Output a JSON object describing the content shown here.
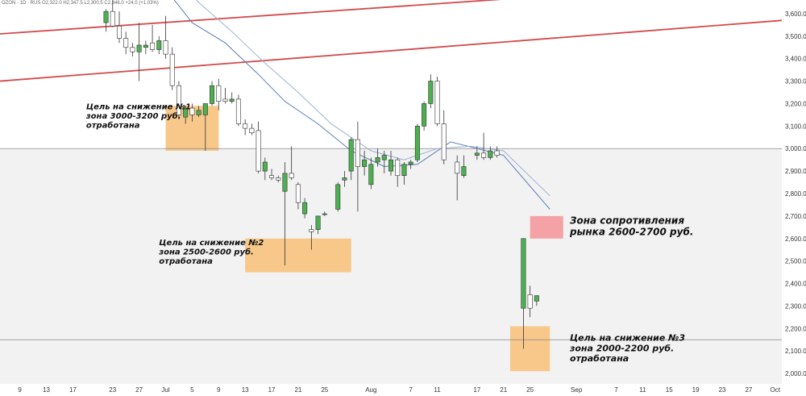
{
  "header": {
    "symbol_line": "OZON · 1D · RUS O2,322.0 H2,347.5 L2,300.5 C2,346.0 +24.0 (+1.03%)"
  },
  "chart_data": {
    "type": "candlestick",
    "y_scale": "linear",
    "y_range": [
      1950,
      3650
    ],
    "x_range": [
      "2023-06-06",
      "2023-10-02"
    ],
    "grid": false,
    "y_ticks": [
      "3,600.0",
      "3,500.0",
      "3,400.0",
      "3,300.0",
      "3,200.0",
      "3,100.0",
      "3,000.0",
      "2,900.0",
      "2,800.0",
      "2,700.0",
      "2,600.0",
      "2,500.0",
      "2,400.0",
      "2,300.0",
      "2,200.0",
      "2,100.0",
      "2,000.0"
    ],
    "y_tick_values": [
      3600,
      3500,
      3400,
      3300,
      3200,
      3100,
      3000,
      2900,
      2800,
      2700,
      2600,
      2500,
      2400,
      2300,
      2200,
      2100,
      2000
    ],
    "x_ticks": [
      {
        "label": "9",
        "date": "2023-06-09"
      },
      {
        "label": "13",
        "date": "2023-06-13"
      },
      {
        "label": "17",
        "date": "2023-06-17"
      },
      {
        "label": "23",
        "date": "2023-06-23"
      },
      {
        "label": "27",
        "date": "2023-06-27"
      },
      {
        "label": "Jul",
        "date": "2023-07-01"
      },
      {
        "label": "5",
        "date": "2023-07-05"
      },
      {
        "label": "9",
        "date": "2023-07-09"
      },
      {
        "label": "13",
        "date": "2023-07-13"
      },
      {
        "label": "17",
        "date": "2023-07-17"
      },
      {
        "label": "21",
        "date": "2023-07-21"
      },
      {
        "label": "25",
        "date": "2023-07-25"
      },
      {
        "label": "Aug",
        "date": "2023-08-01"
      },
      {
        "label": "7",
        "date": "2023-08-07"
      },
      {
        "label": "11",
        "date": "2023-08-11"
      },
      {
        "label": "17",
        "date": "2023-08-17"
      },
      {
        "label": "21",
        "date": "2023-08-21"
      },
      {
        "label": "25",
        "date": "2023-08-25"
      },
      {
        "label": "Sep",
        "date": "2023-09-01"
      },
      {
        "label": "7",
        "date": "2023-09-07"
      },
      {
        "label": "11",
        "date": "2023-09-11"
      },
      {
        "label": "15",
        "date": "2023-09-15"
      },
      {
        "label": "19",
        "date": "2023-09-19"
      },
      {
        "label": "23",
        "date": "2023-09-23"
      },
      {
        "label": "27",
        "date": "2023-09-27"
      },
      {
        "label": "Oct",
        "date": "2023-10-01"
      }
    ],
    "candles": [
      {
        "date": "2023-06-22",
        "open": 3560,
        "high": 3620,
        "low": 3520,
        "close": 3610
      },
      {
        "date": "2023-06-23",
        "open": 3610,
        "high": 3660,
        "low": 3540,
        "close": 3545
      },
      {
        "date": "2023-06-24",
        "open": 3545,
        "high": 3610,
        "low": 3470,
        "close": 3490
      },
      {
        "date": "2023-06-25",
        "open": 3490,
        "high": 3520,
        "low": 3420,
        "close": 3450
      },
      {
        "date": "2023-06-26",
        "open": 3450,
        "high": 3470,
        "low": 3410,
        "close": 3430
      },
      {
        "date": "2023-06-27",
        "open": 3430,
        "high": 3560,
        "low": 3300,
        "close": 3460
      },
      {
        "date": "2023-06-28",
        "open": 3450,
        "high": 3480,
        "low": 3420,
        "close": 3460
      },
      {
        "date": "2023-06-29",
        "open": 3470,
        "high": 3550,
        "low": 3430,
        "close": 3440
      },
      {
        "date": "2023-06-30",
        "open": 3440,
        "high": 3500,
        "low": 3420,
        "close": 3480
      },
      {
        "date": "2023-07-01",
        "open": 3480,
        "high": 3590,
        "low": 3400,
        "close": 3420
      },
      {
        "date": "2023-07-02",
        "open": 3420,
        "high": 3450,
        "low": 3260,
        "close": 3280
      },
      {
        "date": "2023-07-03",
        "open": 3280,
        "high": 3300,
        "low": 3130,
        "close": 3150
      },
      {
        "date": "2023-07-04",
        "open": 3140,
        "high": 3190,
        "low": 3110,
        "close": 3180
      },
      {
        "date": "2023-07-05",
        "open": 3180,
        "high": 3200,
        "low": 3120,
        "close": 3150
      },
      {
        "date": "2023-07-06",
        "open": 3150,
        "high": 3190,
        "low": 3140,
        "close": 3170
      },
      {
        "date": "2023-07-07",
        "open": 3150,
        "high": 3200,
        "low": 2990,
        "close": 3200
      },
      {
        "date": "2023-07-08",
        "open": 3200,
        "high": 3300,
        "low": 3190,
        "close": 3280
      },
      {
        "date": "2023-07-09",
        "open": 3280,
        "high": 3310,
        "low": 3170,
        "close": 3210
      },
      {
        "date": "2023-07-10",
        "open": 3220,
        "high": 3270,
        "low": 3200,
        "close": 3210
      },
      {
        "date": "2023-07-11",
        "open": 3210,
        "high": 3250,
        "low": 3200,
        "close": 3220
      },
      {
        "date": "2023-07-12",
        "open": 3220,
        "high": 3240,
        "low": 3100,
        "close": 3110
      },
      {
        "date": "2023-07-13",
        "open": 3110,
        "high": 3130,
        "low": 3060,
        "close": 3090
      },
      {
        "date": "2023-07-14",
        "open": 3090,
        "high": 3110,
        "low": 3060,
        "close": 3070
      },
      {
        "date": "2023-07-15",
        "open": 3080,
        "high": 3120,
        "low": 2890,
        "close": 2900
      },
      {
        "date": "2023-07-16",
        "open": 2900,
        "high": 2960,
        "low": 2860,
        "close": 2940
      },
      {
        "date": "2023-07-17",
        "open": 2880,
        "high": 2910,
        "low": 2860,
        "close": 2870
      },
      {
        "date": "2023-07-18",
        "open": 2870,
        "high": 2880,
        "low": 2850,
        "close": 2860
      },
      {
        "date": "2023-07-19",
        "open": 2810,
        "high": 2940,
        "low": 2480,
        "close": 2890
      },
      {
        "date": "2023-07-20",
        "open": 2890,
        "high": 3010,
        "low": 2860,
        "close": 2870
      },
      {
        "date": "2023-07-21",
        "open": 2840,
        "high": 2850,
        "low": 2730,
        "close": 2760
      },
      {
        "date": "2023-07-22",
        "open": 2710,
        "high": 2780,
        "low": 2690,
        "close": 2760
      },
      {
        "date": "2023-07-23",
        "open": 2640,
        "high": 2660,
        "low": 2550,
        "close": 2630
      },
      {
        "date": "2023-07-24",
        "open": 2640,
        "high": 2700,
        "low": 2620,
        "close": 2700
      },
      {
        "date": "2023-07-25",
        "open": 2710,
        "high": 2720,
        "low": 2700,
        "close": 2710
      },
      {
        "date": "2023-07-27",
        "open": 2730,
        "high": 2850,
        "low": 2720,
        "close": 2840
      },
      {
        "date": "2023-07-28",
        "open": 2860,
        "high": 2900,
        "low": 2830,
        "close": 2870
      },
      {
        "date": "2023-07-29",
        "open": 2900,
        "high": 3050,
        "low": 2860,
        "close": 3040
      },
      {
        "date": "2023-07-30",
        "open": 3040,
        "high": 3120,
        "low": 2720,
        "close": 2920
      },
      {
        "date": "2023-07-31",
        "open": 2920,
        "high": 2990,
        "low": 2880,
        "close": 2950
      },
      {
        "date": "2023-08-01",
        "open": 2840,
        "high": 2960,
        "low": 2820,
        "close": 2930
      },
      {
        "date": "2023-08-02",
        "open": 2940,
        "high": 3000,
        "low": 2920,
        "close": 2960
      },
      {
        "date": "2023-08-03",
        "open": 2950,
        "high": 2990,
        "low": 2890,
        "close": 2970
      },
      {
        "date": "2023-08-04",
        "open": 2900,
        "high": 2990,
        "low": 2880,
        "close": 2950
      },
      {
        "date": "2023-08-05",
        "open": 2950,
        "high": 2960,
        "low": 2830,
        "close": 2880
      },
      {
        "date": "2023-08-06",
        "open": 2880,
        "high": 2940,
        "low": 2840,
        "close": 2930
      },
      {
        "date": "2023-08-07",
        "open": 2930,
        "high": 2950,
        "low": 2910,
        "close": 2940
      },
      {
        "date": "2023-08-08",
        "open": 2950,
        "high": 3110,
        "low": 2940,
        "close": 3100
      },
      {
        "date": "2023-08-09",
        "open": 3100,
        "high": 3210,
        "low": 3080,
        "close": 3200
      },
      {
        "date": "2023-08-10",
        "open": 3200,
        "high": 3330,
        "low": 3180,
        "close": 3300
      },
      {
        "date": "2023-08-11",
        "open": 3300,
        "high": 3320,
        "low": 3100,
        "close": 3110
      },
      {
        "date": "2023-08-12",
        "open": 3110,
        "high": 3170,
        "low": 2930,
        "close": 2950
      },
      {
        "date": "2023-08-14",
        "open": 2940,
        "high": 2970,
        "low": 2770,
        "close": 2890
      },
      {
        "date": "2023-08-15",
        "open": 2880,
        "high": 2970,
        "low": 2870,
        "close": 2920
      },
      {
        "date": "2023-08-17",
        "open": 2970,
        "high": 3010,
        "low": 2950,
        "close": 2980
      },
      {
        "date": "2023-08-18",
        "open": 2980,
        "high": 3070,
        "low": 2950,
        "close": 2960
      },
      {
        "date": "2023-08-19",
        "open": 2960,
        "high": 3010,
        "low": 2950,
        "close": 2990
      },
      {
        "date": "2023-08-20",
        "open": 2990,
        "high": 3010,
        "low": 2960,
        "close": 2970
      },
      {
        "date": "2023-08-24",
        "open": 2290,
        "high": 2600,
        "low": 2110,
        "close": 2600
      },
      {
        "date": "2023-08-25",
        "open": 2350,
        "high": 2390,
        "low": 2250,
        "close": 2290
      },
      {
        "date": "2023-08-26",
        "open": 2322,
        "high": 2347.5,
        "low": 2300.5,
        "close": 2346
      }
    ],
    "moving_averages": [
      {
        "color": "#5b7fb8",
        "points": [
          [
            "2023-06-26",
            3800
          ],
          [
            "2023-07-01",
            3710
          ],
          [
            "2023-07-05",
            3560
          ],
          [
            "2023-07-10",
            3470
          ],
          [
            "2023-07-15",
            3330
          ],
          [
            "2023-07-19",
            3210
          ],
          [
            "2023-07-24",
            3110
          ],
          [
            "2023-07-29",
            2990
          ],
          [
            "2023-08-03",
            2920
          ],
          [
            "2023-08-08",
            2930
          ],
          [
            "2023-08-13",
            3030
          ],
          [
            "2023-08-17",
            3000
          ],
          [
            "2023-08-21",
            2970
          ],
          [
            "2023-08-28",
            2730
          ]
        ]
      },
      {
        "color": "#9ab0d6",
        "points": [
          [
            "2023-06-26",
            3880
          ],
          [
            "2023-07-01",
            3800
          ],
          [
            "2023-07-06",
            3650
          ],
          [
            "2023-07-11",
            3520
          ],
          [
            "2023-07-16",
            3380
          ],
          [
            "2023-07-21",
            3250
          ],
          [
            "2023-07-26",
            3110
          ],
          [
            "2023-08-01",
            2990
          ],
          [
            "2023-08-06",
            2950
          ],
          [
            "2023-08-11",
            3000
          ],
          [
            "2023-08-16",
            3010
          ],
          [
            "2023-08-21",
            2990
          ],
          [
            "2023-08-28",
            2790
          ]
        ]
      }
    ],
    "trend_lines": [
      {
        "color": "#d24a4a",
        "from": [
          "2023-06-06",
          3510
        ],
        "to": [
          "2023-10-02",
          3750
        ]
      },
      {
        "color": "#d24a4a",
        "from": [
          "2023-06-06",
          3300
        ],
        "to": [
          "2023-10-02",
          3570
        ]
      }
    ],
    "horizontal_lines": [
      {
        "value": 3000,
        "color": "#888888"
      },
      {
        "value": 2150,
        "color": "#888888"
      }
    ],
    "shaded_band": {
      "from": 3000,
      "to": 1950,
      "color": "#f2f2f2"
    },
    "zones": [
      {
        "from_date": "2023-07-01",
        "to_date": "2023-07-09",
        "low": 2990,
        "high": 3190,
        "color": "#f7c88a"
      },
      {
        "from_date": "2023-07-13",
        "to_date": "2023-07-29",
        "low": 2450,
        "high": 2600,
        "color": "#f7c88a"
      },
      {
        "from_date": "2023-08-22",
        "to_date": "2023-08-28",
        "low": 2010,
        "high": 2210,
        "color": "#f7c88a"
      },
      {
        "from_date": "2023-08-25",
        "to_date": "2023-08-30",
        "low": 2600,
        "high": 2700,
        "color": "#f4a2a6"
      }
    ],
    "annotations": [
      {
        "lines": [
          "Цель на снижение №1",
          "зона 3000-3200 руб.",
          "отработана"
        ],
        "date": "2023-06-19",
        "value": 3175,
        "size": 10
      },
      {
        "lines": [
          "Цель на снижение №2",
          "зона 2500-2600 руб.",
          "отработана"
        ],
        "date": "2023-06-30",
        "value": 2570,
        "size": 10
      },
      {
        "lines": [
          "Зона сопротивления",
          "рынка 2600-2700 руб."
        ],
        "date": "2023-08-31",
        "value": 2665,
        "size": 12
      },
      {
        "lines": [
          "Цель на снижение №3",
          "зона 2000-2200 руб.",
          "отработана"
        ],
        "date": "2023-08-31",
        "value": 2145,
        "size": 11
      }
    ],
    "colors": {
      "up": "#4caf50",
      "down": "#ffffff",
      "candle_border": "#333333"
    }
  }
}
